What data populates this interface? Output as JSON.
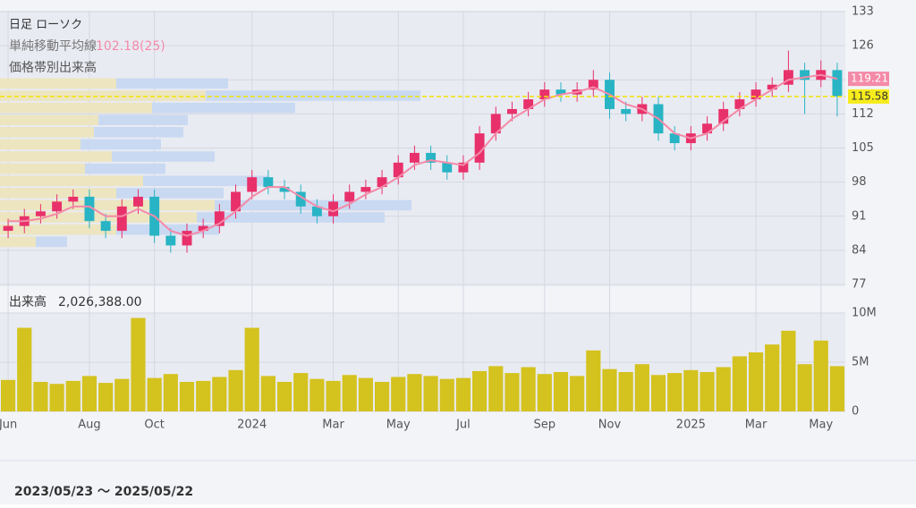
{
  "chart_data": [
    {
      "type": "candlestick",
      "title": "日足 ローソク",
      "categories": [
        "Jun",
        null,
        null,
        null,
        null,
        "Aug",
        null,
        null,
        null,
        "Oct",
        null,
        null,
        null,
        null,
        null,
        "2024",
        null,
        null,
        null,
        null,
        "Mar",
        null,
        null,
        null,
        "May",
        null,
        null,
        null,
        "Jul",
        null,
        null,
        null,
        null,
        "Sep",
        null,
        null,
        null,
        "Nov",
        null,
        null,
        null,
        null,
        "2025",
        null,
        null,
        null,
        "Mar",
        null,
        null,
        null,
        "May",
        null
      ],
      "open": [
        88,
        89,
        91,
        92,
        94,
        95,
        90,
        88,
        93,
        95,
        87,
        85,
        88,
        89,
        92,
        96,
        99,
        97,
        96,
        93,
        91,
        94,
        96,
        97,
        99,
        102,
        104,
        102,
        100,
        102,
        108,
        112,
        113,
        115,
        117,
        116,
        117,
        119,
        113,
        112,
        114,
        108,
        106,
        108,
        110,
        113,
        115,
        117,
        118,
        121,
        119,
        121
      ],
      "high": [
        90.5,
        92.5,
        93.5,
        95.5,
        96.5,
        96.5,
        91.5,
        94.5,
        96.5,
        96.5,
        88.5,
        89.5,
        90.5,
        93.5,
        97.5,
        100.5,
        100.5,
        98.5,
        97.5,
        94.5,
        95.5,
        97.5,
        98.5,
        100.5,
        103.5,
        105.5,
        105.5,
        103.5,
        103.5,
        109.5,
        113.5,
        114.5,
        116.5,
        118.5,
        118.5,
        118.5,
        121,
        120.5,
        114.5,
        115.5,
        115.5,
        109.5,
        109.5,
        111.5,
        114.5,
        116.5,
        118.5,
        119.5,
        125,
        122.5,
        123,
        122.5
      ],
      "low": [
        86.5,
        87.5,
        89.5,
        90.5,
        92.5,
        88.5,
        86.5,
        86.5,
        91.5,
        85.5,
        83.5,
        83.5,
        86.5,
        87.5,
        90.5,
        94.5,
        95.5,
        94.5,
        91.5,
        89.5,
        89.5,
        92.5,
        94.5,
        95.5,
        97.5,
        100.5,
        100.5,
        98.5,
        98.5,
        100.5,
        106.5,
        110.5,
        111.5,
        113.5,
        114.5,
        114.5,
        115.5,
        111,
        110.5,
        110.5,
        106.5,
        104.5,
        104.5,
        106.5,
        108.5,
        111.5,
        113.5,
        115.5,
        116.5,
        112,
        117.5,
        111.5
      ],
      "close": [
        89,
        91,
        92,
        94,
        95,
        90,
        88,
        93,
        95,
        87,
        85,
        88,
        89,
        92,
        96,
        99,
        97,
        96,
        93,
        91,
        94,
        96,
        97,
        99,
        102,
        104,
        102,
        100,
        102,
        108,
        112,
        113,
        115,
        117,
        116,
        117,
        119,
        113,
        112,
        114,
        108,
        106,
        108,
        110,
        113,
        115,
        117,
        118,
        121,
        119,
        121,
        115.58
      ],
      "up_color": "#e8316b",
      "down_color": "#28b4c4",
      "ma": {
        "name": "単純移動平均線",
        "label": "102.18(25)",
        "color": "#f48aa8",
        "values": [
          90,
          90,
          90.5,
          91.5,
          93,
          93,
          91,
          91,
          92.5,
          91,
          88,
          87,
          88,
          89.5,
          92,
          95,
          97,
          97,
          95,
          93,
          92,
          93.5,
          95.5,
          97,
          99,
          101.5,
          102.5,
          102,
          101.5,
          104,
          108,
          111,
          113,
          115,
          116,
          116.5,
          117.5,
          116,
          114,
          113,
          111,
          108,
          107,
          108,
          110.5,
          113,
          115,
          117,
          119,
          119.5,
          120,
          119.21
        ]
      },
      "profile": {
        "name": "価格帯別出来高",
        "bins": [
          84.5,
          87,
          89.5,
          92,
          94.5,
          97,
          99.5,
          102,
          104.5,
          107,
          109.5,
          112,
          114.5,
          117,
          119.5
        ],
        "buy": [
          40,
          130,
          220,
          240,
          130,
          160,
          95,
          125,
          90,
          105,
          110,
          170,
          230,
          130
        ],
        "buy_color": "#ece5c0",
        "sell": [
          35,
          115,
          210,
          220,
          120,
          140,
          90,
          115,
          90,
          100,
          100,
          160,
          240,
          125
        ],
        "sell_color": "#c9d9f2"
      },
      "ylim": [
        77,
        133
      ],
      "yticks": [
        77,
        84,
        91,
        98,
        105,
        112,
        119,
        126,
        133
      ],
      "grid": true
    },
    {
      "type": "bar",
      "title": "出来高",
      "total": {
        "value": 2026388,
        "label": "2,026,388.00"
      },
      "color": "#d4c21e",
      "values": [
        3200000,
        8500000,
        3000000,
        2800000,
        3100000,
        3600000,
        2900000,
        3300000,
        9500000,
        3400000,
        3800000,
        3000000,
        3100000,
        3500000,
        4200000,
        8500000,
        3600000,
        3000000,
        3900000,
        3300000,
        3100000,
        3700000,
        3400000,
        3000000,
        3500000,
        3800000,
        3600000,
        3300000,
        3400000,
        4100000,
        4600000,
        3900000,
        4500000,
        3800000,
        4000000,
        3600000,
        6200000,
        4300000,
        4000000,
        4800000,
        3700000,
        3900000,
        4200000,
        4000000,
        4500000,
        5600000,
        6000000,
        6800000,
        8200000,
        4800000,
        7200000,
        4600000
      ],
      "ylim": [
        0,
        10000000
      ],
      "yticks": [
        0,
        {
          "value": 5000000,
          "label": "5M"
        },
        {
          "value": 10000000,
          "label": "10M"
        }
      ]
    }
  ],
  "period": "2023/05/23 〜 2025/05/22"
}
